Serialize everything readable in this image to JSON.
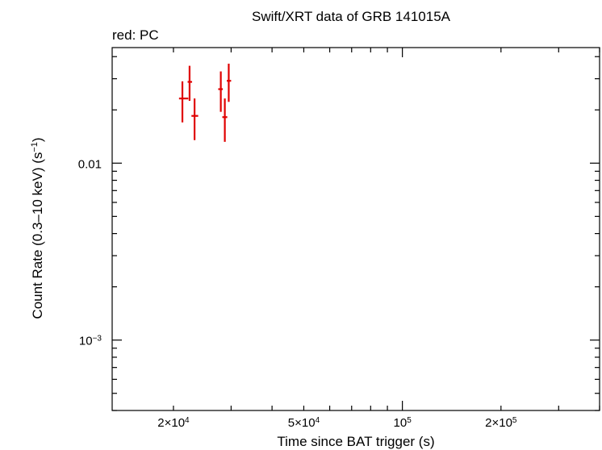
{
  "chart_data": {
    "type": "scatter",
    "title": "Swift/XRT data of GRB 141015A",
    "subtitle": "red: PC",
    "xlabel": "Time since BAT trigger (s)",
    "ylabel": "Count Rate (0.3–10 keV) (s",
    "ylabel_sup": "−1",
    "ylabel_end": ")",
    "xscale": "log",
    "yscale": "log",
    "xlim": [
      13000,
      400000
    ],
    "ylim": [
      0.0004,
      0.045
    ],
    "x_ticks": [
      {
        "value": 20000,
        "base": "2×10",
        "exp": "4"
      },
      {
        "value": 50000,
        "base": "5×10",
        "exp": "4"
      },
      {
        "value": 100000,
        "base": "10",
        "exp": "5"
      },
      {
        "value": 200000,
        "base": "2×10",
        "exp": "5"
      }
    ],
    "y_ticks": [
      {
        "value": 0.01,
        "base": "0.01",
        "exp": ""
      },
      {
        "value": 0.001,
        "base": "10",
        "exp": "−3"
      }
    ],
    "series": [
      {
        "color": "#e00000",
        "points": [
          {
            "x": 21300,
            "xerr": [
              20800,
              22200
            ],
            "y": 0.0232,
            "yerr": [
              0.017,
              0.029
            ]
          },
          {
            "x": 22400,
            "xerr": [
              22100,
              22800
            ],
            "y": 0.0288,
            "yerr": [
              0.0225,
              0.0355
            ]
          },
          {
            "x": 23200,
            "xerr": [
              22700,
              23800
            ],
            "y": 0.0185,
            "yerr": [
              0.0135,
              0.0232
            ]
          },
          {
            "x": 27900,
            "xerr": [
              27400,
              28300
            ],
            "y": 0.0262,
            "yerr": [
              0.0195,
              0.033
            ]
          },
          {
            "x": 28700,
            "xerr": [
              28200,
              29200
            ],
            "y": 0.0182,
            "yerr": [
              0.0132,
              0.0232
            ]
          },
          {
            "x": 29500,
            "xerr": [
              29100,
              30000
            ],
            "y": 0.0292,
            "yerr": [
              0.0222,
              0.0365
            ]
          }
        ]
      }
    ]
  }
}
